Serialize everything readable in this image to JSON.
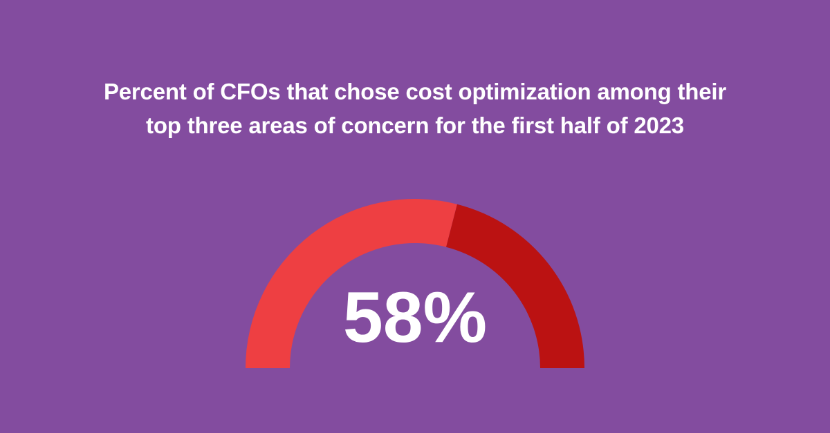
{
  "chart_data": {
    "type": "pie",
    "title_lines": [
      "Percent of CFOs that chose cost optimization among their",
      "top three areas of concern for the first half of 2023"
    ],
    "value_percent": 58,
    "value_label": "58%",
    "colors": {
      "background": "#834c9f",
      "filled_segment": "#ee3f42",
      "remaining_segment": "#bb1212",
      "text": "#ffffff"
    }
  }
}
